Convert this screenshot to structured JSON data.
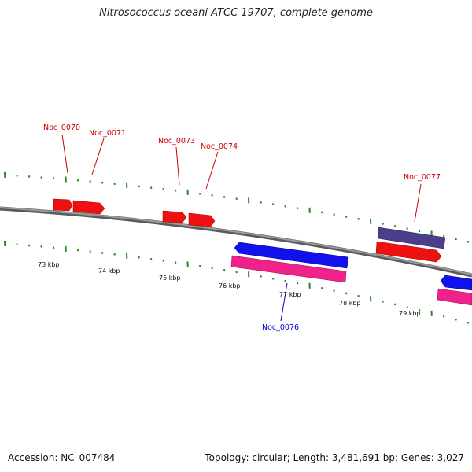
{
  "title": "Nitrosococcus oceani ATCC 19707, complete genome",
  "footer": {
    "accession": "Accession: NC_007484",
    "summary": "Topology: circular; Length: 3,481,691 bp; Genes: 3,027"
  },
  "scale_labels": [
    "73 kbp",
    "74 kbp",
    "75 kbp",
    "76 kbp",
    "77 kbp",
    "78 kbp",
    "79 kbp"
  ],
  "gene_labels": [
    {
      "text": "Noc_0070",
      "color": "#cc0000"
    },
    {
      "text": "Noc_0071",
      "color": "#cc0000"
    },
    {
      "text": "Noc_0073",
      "color": "#cc0000"
    },
    {
      "text": "Noc_0074",
      "color": "#cc0000"
    },
    {
      "text": "Noc_0077",
      "color": "#cc0000"
    },
    {
      "text": "Noc_0076",
      "color": "#0000cc"
    }
  ],
  "colors": {
    "forward_cds": "#ee1111",
    "reverse_cds": "#1111ee",
    "reverse_gene": "#ee2288",
    "forward_gene": "#4b3f8a",
    "backbone": "#808080",
    "ticks": "#228822"
  }
}
